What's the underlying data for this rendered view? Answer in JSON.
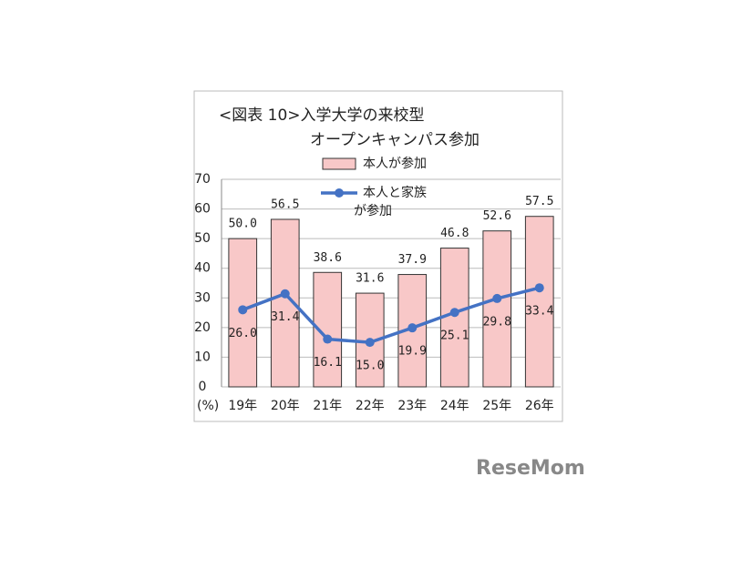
{
  "chart_data": {
    "type": "combo",
    "title": [
      "<図表 10>入学大学の来校型",
      "オープンキャンパス参加"
    ],
    "y_unit": "(%)",
    "categories": [
      "19年",
      "20年",
      "21年",
      "22年",
      "23年",
      "24年",
      "25年",
      "26年"
    ],
    "series": [
      {
        "name": "本人が参加",
        "type": "bar",
        "color": "#f8c8c8",
        "values": [
          50.0,
          56.5,
          38.6,
          31.6,
          37.9,
          46.8,
          52.6,
          57.5
        ],
        "value_labels": [
          "50.0",
          "56.5",
          "38.6",
          "31.6",
          "37.9",
          "46.8",
          "52.6",
          "57.5"
        ]
      },
      {
        "name": "本人と家族\nが参加",
        "type": "line",
        "color": "#4472c4",
        "values": [
          26.0,
          31.4,
          16.1,
          15.0,
          19.9,
          25.1,
          29.8,
          33.4
        ],
        "value_labels": [
          "26.0",
          "31.4",
          "16.1",
          "15.0",
          "19.9",
          "25.1",
          "29.8",
          "33.4"
        ]
      }
    ],
    "ylim": [
      0,
      70
    ],
    "yticks": [
      0,
      10,
      20,
      30,
      40,
      50,
      60,
      70
    ],
    "grid": true
  },
  "watermark": "ReseMom"
}
